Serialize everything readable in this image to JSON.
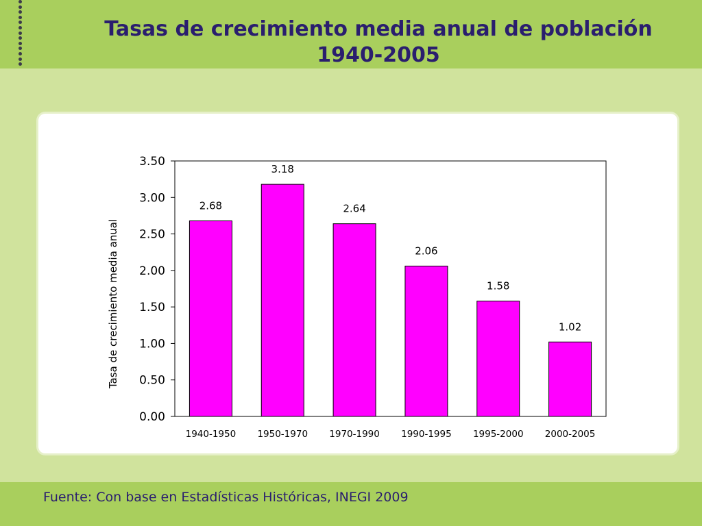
{
  "slide": {
    "title_line1": "Tasas de crecimiento media anual de población",
    "title_line2": "1940-2005",
    "source": "Fuente: Con base en Estadísticas Históricas, INEGI 2009"
  },
  "colors": {
    "bar_fill": "#ff00ff",
    "bar_stroke": "#000000",
    "title": "#2a1e6e",
    "header_band": "#a9cf5d",
    "background": "#d0e39d"
  },
  "chart_data": {
    "type": "bar",
    "title": "",
    "xlabel": "",
    "ylabel": "Tasa de crecimiento media anual",
    "categories": [
      "1940-1950",
      "1950-1970",
      "1970-1990",
      "1990-1995",
      "1995-2000",
      "2000-2005"
    ],
    "series": [
      {
        "values": [
          2.68,
          3.18,
          2.64,
          2.06,
          1.58,
          1.02
        ]
      }
    ],
    "data_labels": [
      "2.68",
      "3.18",
      "2.64",
      "2.06",
      "1.58",
      "1.02"
    ],
    "ylim": [
      0,
      3.5
    ],
    "yticks": [
      0,
      0.5,
      1,
      1.5,
      2,
      2.5,
      3,
      3.5
    ],
    "ytick_labels": [
      "0.00",
      "0.50",
      "1.00",
      "1.50",
      "2.00",
      "2.50",
      "3.00",
      "3.50"
    ],
    "grid": false,
    "legend": "none"
  }
}
